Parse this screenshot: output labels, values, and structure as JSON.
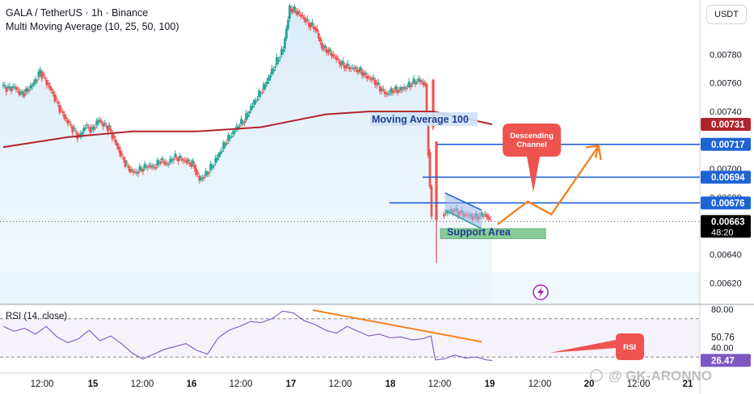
{
  "header": {
    "symbol_line": "GALA / TetherUS · 1h · Binance",
    "indicator_line": "Multi Moving Average (10, 25, 50, 100)"
  },
  "currency_button": "USDT",
  "watermark": "GK-ARONNO",
  "colors": {
    "up": "#26a69a",
    "down": "#ef5350",
    "ma100": "#b2242b",
    "blue": "#1e63d6",
    "orange": "#f4821f",
    "support": "#76c488",
    "rsi": "#7e57c2"
  },
  "chart_data": [
    {
      "type": "candlestick",
      "title": "GALA / TetherUS · 1h · Binance",
      "ylim": [
        0.00605,
        0.00818
      ],
      "yticks": [
        "0.00780",
        "0.00760",
        "0.00740",
        "0.00700",
        "0.00680",
        "0.00640",
        "0.00620"
      ],
      "price_badges": [
        {
          "label": "0.00731",
          "value": 0.00731,
          "color": "#b2242b"
        },
        {
          "label": "0.00717",
          "value": 0.00717,
          "color": "#1e63d6"
        },
        {
          "label": "0.00694",
          "value": 0.00694,
          "color": "#1e63d6"
        },
        {
          "label": "0.00676",
          "value": 0.00676,
          "color": "#1e63d6"
        },
        {
          "label": "0.00663",
          "value": 0.00663,
          "color": "#000000",
          "countdown": "48:20"
        }
      ],
      "close_path": [
        [
          0,
          0.00758
        ],
        [
          6,
          0.00756
        ],
        [
          12,
          0.00757
        ],
        [
          18,
          0.00752
        ],
        [
          24,
          0.00755
        ],
        [
          30,
          0.0076
        ],
        [
          36,
          0.00768
        ],
        [
          42,
          0.0076
        ],
        [
          48,
          0.00752
        ],
        [
          54,
          0.00742
        ],
        [
          60,
          0.00734
        ],
        [
          66,
          0.00728
        ],
        [
          72,
          0.00722
        ],
        [
          78,
          0.0073
        ],
        [
          84,
          0.00727
        ],
        [
          90,
          0.00734
        ],
        [
          96,
          0.0073
        ],
        [
          100,
          0.00728
        ],
        [
          106,
          0.00718
        ],
        [
          112,
          0.00708
        ],
        [
          118,
          0.007
        ],
        [
          124,
          0.00697
        ],
        [
          130,
          0.007
        ],
        [
          136,
          0.00702
        ],
        [
          142,
          0.00701
        ],
        [
          148,
          0.00706
        ],
        [
          154,
          0.00703
        ],
        [
          160,
          0.00708
        ],
        [
          166,
          0.00707
        ],
        [
          172,
          0.00705
        ],
        [
          178,
          0.00703
        ],
        [
          184,
          0.00692
        ],
        [
          190,
          0.00696
        ],
        [
          196,
          0.00702
        ],
        [
          202,
          0.0071
        ],
        [
          208,
          0.00718
        ],
        [
          214,
          0.00724
        ],
        [
          220,
          0.0073
        ],
        [
          226,
          0.00734
        ],
        [
          232,
          0.00743
        ],
        [
          238,
          0.0075
        ],
        [
          244,
          0.00757
        ],
        [
          250,
          0.00766
        ],
        [
          256,
          0.00775
        ],
        [
          262,
          0.00784
        ],
        [
          268,
          0.00812
        ],
        [
          274,
          0.0081
        ],
        [
          280,
          0.00806
        ],
        [
          286,
          0.00801
        ],
        [
          292,
          0.00798
        ],
        [
          298,
          0.00785
        ],
        [
          304,
          0.00782
        ],
        [
          310,
          0.00778
        ],
        [
          316,
          0.00773
        ],
        [
          322,
          0.00771
        ],
        [
          328,
          0.0077
        ],
        [
          334,
          0.00768
        ],
        [
          340,
          0.00764
        ],
        [
          346,
          0.00762
        ],
        [
          352,
          0.00756
        ],
        [
          358,
          0.00752
        ],
        [
          364,
          0.00755
        ],
        [
          370,
          0.00755
        ],
        [
          376,
          0.00757
        ],
        [
          382,
          0.0076
        ],
        [
          388,
          0.00762
        ],
        [
          394,
          0.00759
        ],
        [
          400,
          0.00664
        ],
        [
          403,
          0.00673
        ],
        [
          410,
          0.00668
        ],
        [
          420,
          0.00671
        ],
        [
          430,
          0.00668
        ],
        [
          440,
          0.00666
        ],
        [
          450,
          0.00668
        ],
        [
          455,
          0.00663
        ]
      ],
      "drop_candles": [
        {
          "x": 400,
          "open": 0.00762,
          "high": 0.00763,
          "low": 0.00727,
          "close": 0.00729
        },
        {
          "x": 403,
          "open": 0.00719,
          "high": 0.00719,
          "low": 0.00634,
          "close": 0.00664
        }
      ],
      "series": [
        {
          "name": "Moving Average 100",
          "x": [
            0,
            60,
            120,
            180,
            240,
            300,
            340,
            400,
            455
          ],
          "values": [
            0.00715,
            0.00722,
            0.00726,
            0.00726,
            0.00729,
            0.00738,
            0.0074,
            0.0074,
            0.00731
          ]
        }
      ],
      "horizontal_levels": [
        0.00717,
        0.00694,
        0.00676
      ],
      "annotations": [
        {
          "text": "Moving Average 100",
          "kind": "label"
        },
        {
          "text": "Descending Channel",
          "kind": "callout"
        },
        {
          "text": "Support Area",
          "kind": "box",
          "range": [
            0.00651,
            0.00658
          ]
        }
      ],
      "projection_path": [
        [
          460,
          0.00661
        ],
        [
          488,
          0.00677
        ],
        [
          510,
          0.00668
        ],
        [
          554,
          0.00716
        ],
        [
          556,
          0.00706
        ]
      ],
      "xtick_labels": [
        "12:00",
        "15",
        "12:00",
        "16",
        "12:00",
        "17",
        "12:00",
        "18",
        "12:00",
        "19",
        "12:00",
        "20",
        "12:00",
        "21"
      ]
    },
    {
      "type": "line",
      "title": "RSI (14, close)",
      "ylim": [
        15,
        85
      ],
      "levels": [
        70,
        30
      ],
      "yticks": [
        "80.00",
        "40.00"
      ],
      "badges": [
        {
          "label": "50.76",
          "value": 50.76,
          "color": "#ffffff"
        },
        {
          "label": "26.47",
          "value": 26.47,
          "color": "#7e57c2"
        }
      ],
      "series": [
        {
          "name": "RSI",
          "x": [
            0,
            10,
            20,
            30,
            40,
            50,
            60,
            70,
            80,
            90,
            100,
            110,
            120,
            130,
            140,
            150,
            160,
            170,
            180,
            190,
            200,
            210,
            220,
            230,
            240,
            250,
            260,
            270,
            280,
            290,
            300,
            310,
            320,
            330,
            340,
            350,
            360,
            370,
            380,
            390,
            398,
            402,
            410,
            420,
            430,
            440,
            450,
            455
          ],
          "values": [
            62,
            57,
            60,
            54,
            62,
            51,
            45,
            49,
            58,
            47,
            52,
            44,
            34,
            28,
            33,
            38,
            41,
            44,
            37,
            33,
            50,
            58,
            62,
            67,
            66,
            70,
            78,
            76,
            68,
            64,
            58,
            55,
            62,
            57,
            52,
            54,
            50,
            51,
            48,
            49,
            52,
            27,
            28,
            32,
            29,
            30,
            27,
            26.47
          ]
        }
      ],
      "divergence_line": {
        "from": [
          288,
          79
        ],
        "to": [
          445,
          46
        ]
      },
      "annotations": [
        {
          "text": "RSI",
          "kind": "callout"
        }
      ]
    }
  ]
}
